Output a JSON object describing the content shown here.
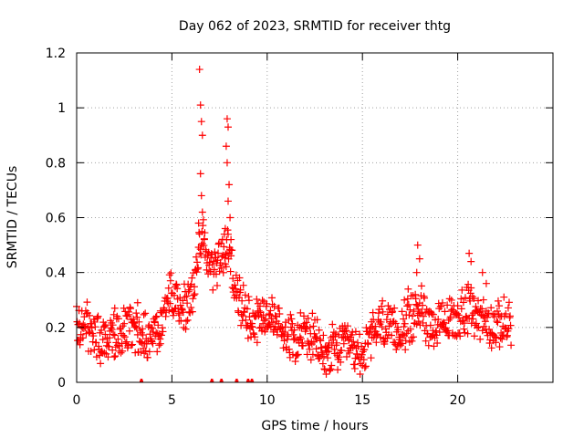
{
  "chart_data": {
    "type": "scatter",
    "title": "Day 062 of 2023, SRMTID for receiver thtg",
    "xlabel": "GPS time / hours",
    "ylabel": "SRMTID / TECUs",
    "xlim": [
      0,
      25
    ],
    "ylim": [
      0,
      1.2
    ],
    "grid": true,
    "marker": "+",
    "marker_color": "#ff0000",
    "x_ticks": [
      {
        "value": 0,
        "label": "0"
      },
      {
        "value": 5,
        "label": "5"
      },
      {
        "value": 10,
        "label": "10"
      },
      {
        "value": 15,
        "label": "15"
      },
      {
        "value": 20,
        "label": "20"
      }
    ],
    "y_ticks": [
      {
        "value": 0,
        "label": "0"
      },
      {
        "value": 0.2,
        "label": "0.2"
      },
      {
        "value": 0.4,
        "label": "0.4"
      },
      {
        "value": 0.6,
        "label": "0.6"
      },
      {
        "value": 0.8,
        "label": "0.8"
      },
      {
        "value": 1.0,
        "label": "1"
      },
      {
        "value": 1.2,
        "label": "1.2"
      }
    ],
    "trend": [
      [
        0.0,
        0.2
      ],
      [
        0.5,
        0.21
      ],
      [
        1.0,
        0.16
      ],
      [
        1.5,
        0.14
      ],
      [
        2.0,
        0.17
      ],
      [
        2.5,
        0.2
      ],
      [
        3.0,
        0.19
      ],
      [
        3.5,
        0.17
      ],
      [
        4.0,
        0.16
      ],
      [
        4.5,
        0.22
      ],
      [
        4.8,
        0.34
      ],
      [
        5.2,
        0.3
      ],
      [
        5.6,
        0.26
      ],
      [
        6.0,
        0.3
      ],
      [
        6.3,
        0.4
      ],
      [
        6.6,
        0.55
      ],
      [
        6.9,
        0.45
      ],
      [
        7.3,
        0.42
      ],
      [
        7.6,
        0.45
      ],
      [
        8.0,
        0.5
      ],
      [
        8.3,
        0.33
      ],
      [
        8.7,
        0.28
      ],
      [
        9.2,
        0.23
      ],
      [
        10.0,
        0.25
      ],
      [
        10.5,
        0.22
      ],
      [
        11.0,
        0.18
      ],
      [
        11.5,
        0.17
      ],
      [
        12.0,
        0.18
      ],
      [
        12.5,
        0.15
      ],
      [
        13.0,
        0.1
      ],
      [
        13.5,
        0.12
      ],
      [
        14.0,
        0.13
      ],
      [
        14.5,
        0.12
      ],
      [
        15.0,
        0.1
      ],
      [
        15.5,
        0.17
      ],
      [
        16.0,
        0.22
      ],
      [
        16.5,
        0.18
      ],
      [
        17.0,
        0.19
      ],
      [
        17.5,
        0.22
      ],
      [
        18.0,
        0.28
      ],
      [
        18.5,
        0.22
      ],
      [
        19.0,
        0.2
      ],
      [
        19.5,
        0.22
      ],
      [
        20.0,
        0.24
      ],
      [
        20.5,
        0.27
      ],
      [
        21.0,
        0.25
      ],
      [
        21.5,
        0.22
      ],
      [
        22.0,
        0.2
      ],
      [
        22.5,
        0.22
      ],
      [
        22.8,
        0.23
      ]
    ],
    "peaks": [
      [
        6.45,
        1.14
      ],
      [
        6.5,
        1.01
      ],
      [
        6.55,
        0.95
      ],
      [
        6.6,
        0.9
      ],
      [
        6.5,
        0.76
      ],
      [
        6.55,
        0.68
      ],
      [
        6.6,
        0.62
      ],
      [
        6.4,
        0.58
      ],
      [
        6.7,
        0.52
      ],
      [
        7.9,
        0.96
      ],
      [
        7.95,
        0.93
      ],
      [
        7.85,
        0.86
      ],
      [
        7.9,
        0.8
      ],
      [
        8.0,
        0.72
      ],
      [
        7.95,
        0.66
      ],
      [
        8.05,
        0.6
      ],
      [
        7.8,
        0.56
      ],
      [
        8.1,
        0.52
      ],
      [
        17.9,
        0.5
      ],
      [
        18.0,
        0.45
      ],
      [
        17.85,
        0.4
      ],
      [
        17.4,
        0.34
      ],
      [
        17.2,
        0.3
      ],
      [
        20.6,
        0.47
      ],
      [
        20.7,
        0.44
      ],
      [
        21.3,
        0.4
      ],
      [
        21.5,
        0.36
      ],
      [
        3.2,
        0.29
      ],
      [
        2.0,
        0.27
      ],
      [
        4.4,
        0.26
      ],
      [
        13.1,
        0.03
      ],
      [
        14.6,
        0.05
      ]
    ],
    "zero_markers": [
      3.4,
      7.1,
      7.6,
      8.4,
      9.0,
      9.2
    ]
  }
}
